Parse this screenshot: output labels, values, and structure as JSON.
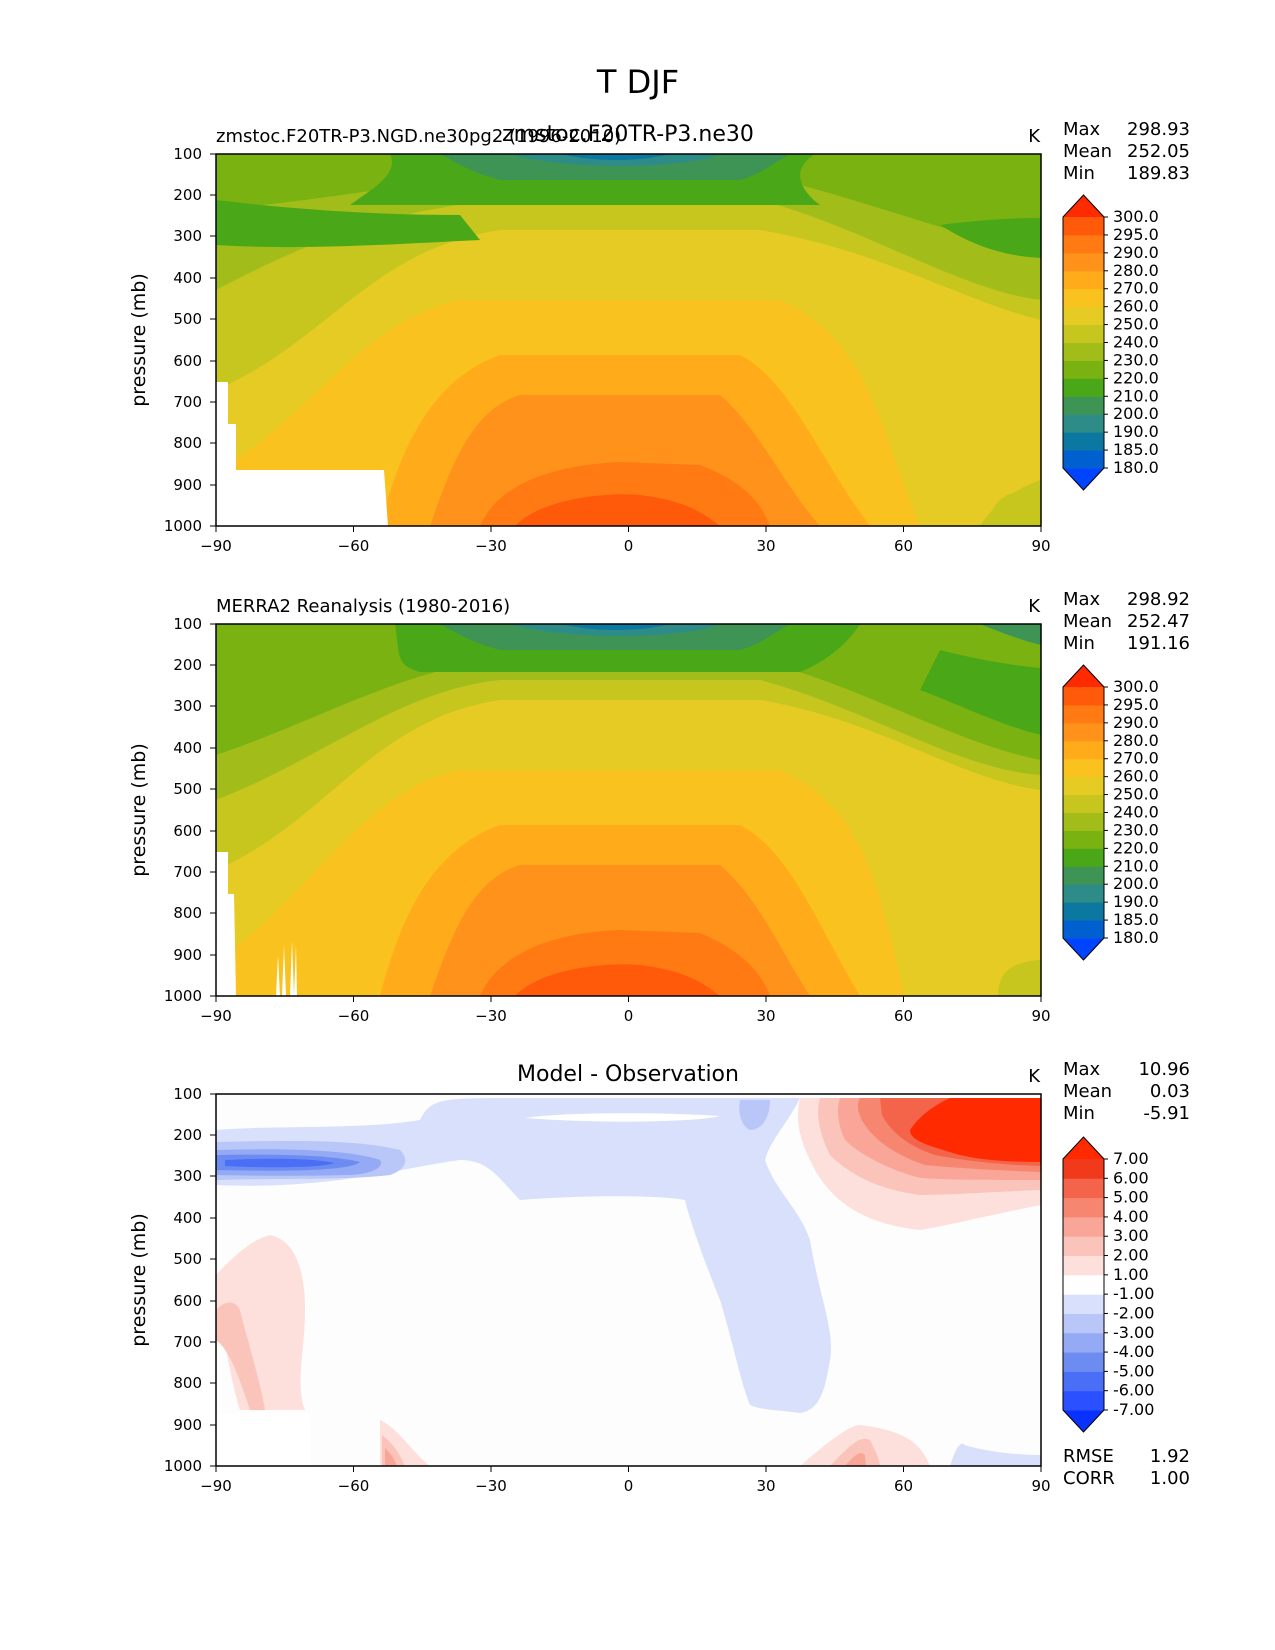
{
  "figure_title": "T DJF",
  "chart_data": [
    {
      "type": "contourf",
      "panel": "test",
      "left_title": "zmstoc.F20TR-P3.NGD.ne30pg2 (1996-2010)",
      "center_title": "zmstoc.F20TR-P3.ne30",
      "units": "K",
      "xlabel": "",
      "ylabel": "pressure (mb)",
      "x_ticks": [
        "−90",
        "−60",
        "−30",
        "0",
        "30",
        "60",
        "90"
      ],
      "y_ticks": [
        "100",
        "200",
        "300",
        "400",
        "500",
        "600",
        "700",
        "800",
        "900",
        "1000"
      ],
      "xlim": [
        -90,
        90
      ],
      "ylim": [
        1000,
        100
      ],
      "stats": {
        "max_label": "Max",
        "max": "298.93",
        "mean_label": "Mean",
        "mean": "252.05",
        "min_label": "Min",
        "min": "189.83"
      },
      "levels": [
        "180.0",
        "185.0",
        "190.0",
        "200.0",
        "210.0",
        "220.0",
        "230.0",
        "240.0",
        "250.0",
        "260.0",
        "270.0",
        "280.0",
        "290.0",
        "295.0",
        "300.0"
      ],
      "colors": [
        "#0044ff",
        "#0060d0",
        "#0a78a0",
        "#2d8c88",
        "#3d9455",
        "#4aa818",
        "#7ab212",
        "#a2bd1a",
        "#c6c61e",
        "#e6cb24",
        "#fac21e",
        "#ffab1a",
        "#ff921a",
        "#ff7a12",
        "#ff5a0a",
        "#ff2a00"
      ],
      "max_lat": 0,
      "max_val": 298.93,
      "min_val": 189.83
    },
    {
      "type": "contourf",
      "panel": "reference",
      "left_title": "MERRA2 Reanalysis (1980-2016)",
      "units": "K",
      "ylabel": "pressure (mb)",
      "x_ticks": [
        "−90",
        "−60",
        "−30",
        "0",
        "30",
        "60",
        "90"
      ],
      "y_ticks": [
        "100",
        "200",
        "300",
        "400",
        "500",
        "600",
        "700",
        "800",
        "900",
        "1000"
      ],
      "xlim": [
        -90,
        90
      ],
      "ylim": [
        1000,
        100
      ],
      "stats": {
        "max_label": "Max",
        "max": "298.92",
        "mean_label": "Mean",
        "mean": "252.47",
        "min_label": "Min",
        "min": "191.16"
      },
      "levels": [
        "180.0",
        "185.0",
        "190.0",
        "200.0",
        "210.0",
        "220.0",
        "230.0",
        "240.0",
        "250.0",
        "260.0",
        "270.0",
        "280.0",
        "290.0",
        "295.0",
        "300.0"
      ],
      "colors": [
        "#0044ff",
        "#0060d0",
        "#0a78a0",
        "#2d8c88",
        "#3d9455",
        "#4aa818",
        "#7ab212",
        "#a2bd1a",
        "#c6c61e",
        "#e6cb24",
        "#fac21e",
        "#ffab1a",
        "#ff921a",
        "#ff7a12",
        "#ff5a0a",
        "#ff2a00"
      ],
      "max_val": 298.92,
      "min_val": 191.16
    },
    {
      "type": "contourf",
      "panel": "difference",
      "center_title": "Model - Observation",
      "units": "K",
      "ylabel": "pressure (mb)",
      "x_ticks": [
        "−90",
        "−60",
        "−30",
        "0",
        "30",
        "60",
        "90"
      ],
      "y_ticks": [
        "100",
        "200",
        "300",
        "400",
        "500",
        "600",
        "700",
        "800",
        "900",
        "1000"
      ],
      "xlim": [
        -90,
        90
      ],
      "ylim": [
        1000,
        100
      ],
      "stats": {
        "max_label": "Max",
        "max": "10.96",
        "mean_label": "Mean",
        "mean": "0.03",
        "min_label": "Min",
        "min": "-5.91"
      },
      "levels": [
        "-7.00",
        "-6.00",
        "-5.00",
        "-4.00",
        "-3.00",
        "-2.00",
        "-1.00",
        "1.00",
        "2.00",
        "3.00",
        "4.00",
        "5.00",
        "6.00",
        "7.00"
      ],
      "colors": [
        "#0a32ff",
        "#2a50ff",
        "#4a6ef5",
        "#6c8cf2",
        "#95aaf4",
        "#b8c6f8",
        "#d8e0fb",
        "#ffffff",
        "#fde0db",
        "#fbc4bb",
        "#f9a698",
        "#f6866f",
        "#f3644a",
        "#f13a1c",
        "#ff2a00"
      ],
      "bottom_stats": {
        "rmse_label": "RMSE",
        "rmse": "1.92",
        "corr_label": "CORR",
        "corr": "1.00"
      }
    }
  ]
}
